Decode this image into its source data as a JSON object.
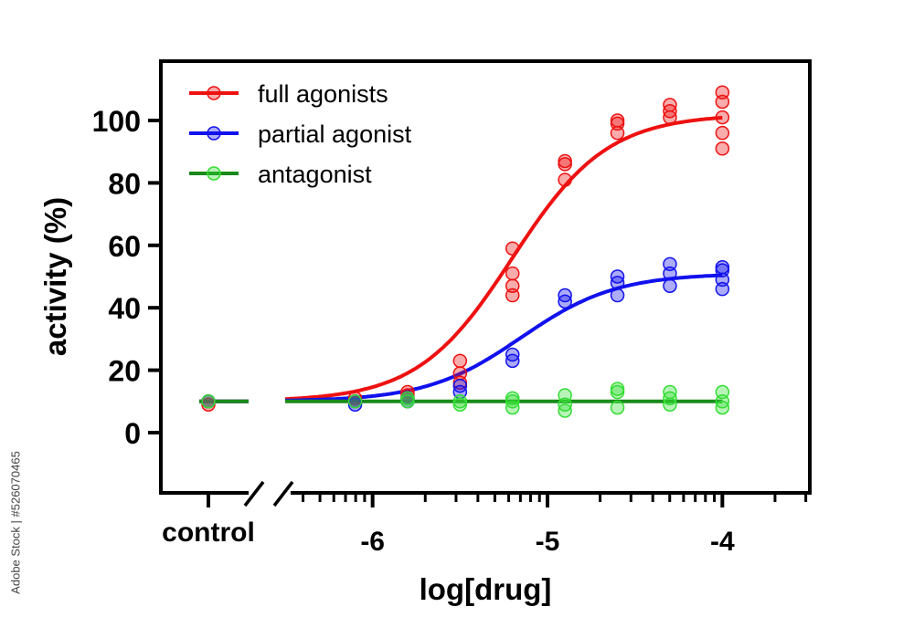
{
  "chart_data": {
    "type": "scatter",
    "xlabel": "log[drug]",
    "ylabel": "activity (%)",
    "xlim": [
      -7.0,
      -3.5
    ],
    "ylim": [
      -18,
      118
    ],
    "x_control_label": "control",
    "x_ticks": [
      -6,
      -5,
      -4
    ],
    "x_tick_labels": [
      "-6",
      "-5",
      "-4"
    ],
    "y_ticks": [
      0,
      20,
      40,
      60,
      80,
      100
    ],
    "y_tick_labels": [
      "0",
      "20",
      "40",
      "60",
      "80",
      "100"
    ],
    "axis_break": true,
    "grid": false,
    "legend_position": "top-left",
    "series": [
      {
        "name": "full agonists",
        "color": "#ee1111",
        "fit": {
          "bottom": 10,
          "top": 102,
          "logEC50": -5.2,
          "hill": 1.6
        },
        "points": [
          {
            "x": "control",
            "y": [
              9,
              10
            ]
          },
          {
            "x": -6.1,
            "y": [
              10,
              11
            ]
          },
          {
            "x": -5.8,
            "y": [
              11,
              12,
              13
            ]
          },
          {
            "x": -5.5,
            "y": [
              16,
              19,
              23
            ]
          },
          {
            "x": -5.2,
            "y": [
              44,
              47,
              51,
              59
            ]
          },
          {
            "x": -4.9,
            "y": [
              81,
              86,
              87
            ]
          },
          {
            "x": -4.6,
            "y": [
              96,
              99,
              100
            ]
          },
          {
            "x": -4.3,
            "y": [
              101,
              103,
              105
            ]
          },
          {
            "x": -4.0,
            "y": [
              91,
              96,
              101,
              106,
              109
            ]
          }
        ]
      },
      {
        "name": "partial agonist",
        "color": "#1111ee",
        "fit": {
          "bottom": 10,
          "top": 51,
          "logEC50": -5.15,
          "hill": 1.6
        },
        "points": [
          {
            "x": "control",
            "y": [
              10
            ]
          },
          {
            "x": -6.1,
            "y": [
              9,
              10
            ]
          },
          {
            "x": -5.8,
            "y": [
              10,
              11
            ]
          },
          {
            "x": -5.5,
            "y": [
              13,
              15
            ]
          },
          {
            "x": -5.2,
            "y": [
              23,
              25
            ]
          },
          {
            "x": -4.9,
            "y": [
              42,
              44
            ]
          },
          {
            "x": -4.6,
            "y": [
              44,
              48,
              50
            ]
          },
          {
            "x": -4.3,
            "y": [
              47,
              51,
              54
            ]
          },
          {
            "x": -4.0,
            "y": [
              46,
              49,
              52,
              53
            ]
          }
        ]
      },
      {
        "name": "antagonist",
        "color": "#1a8a1a",
        "marker_color": "#33dd33",
        "fit": {
          "constant": 10
        },
        "points": [
          {
            "x": "control",
            "y": [
              10
            ]
          },
          {
            "x": -6.1,
            "y": [
              10
            ]
          },
          {
            "x": -5.8,
            "y": [
              10,
              11
            ]
          },
          {
            "x": -5.5,
            "y": [
              9,
              10
            ]
          },
          {
            "x": -5.2,
            "y": [
              8,
              10,
              11
            ]
          },
          {
            "x": -4.9,
            "y": [
              7,
              9,
              12
            ]
          },
          {
            "x": -4.6,
            "y": [
              8,
              13,
              14
            ]
          },
          {
            "x": -4.3,
            "y": [
              9,
              11,
              13
            ]
          },
          {
            "x": -4.0,
            "y": [
              8,
              10,
              13
            ]
          }
        ]
      }
    ]
  },
  "watermark": "Adobe Stock | #526070465"
}
